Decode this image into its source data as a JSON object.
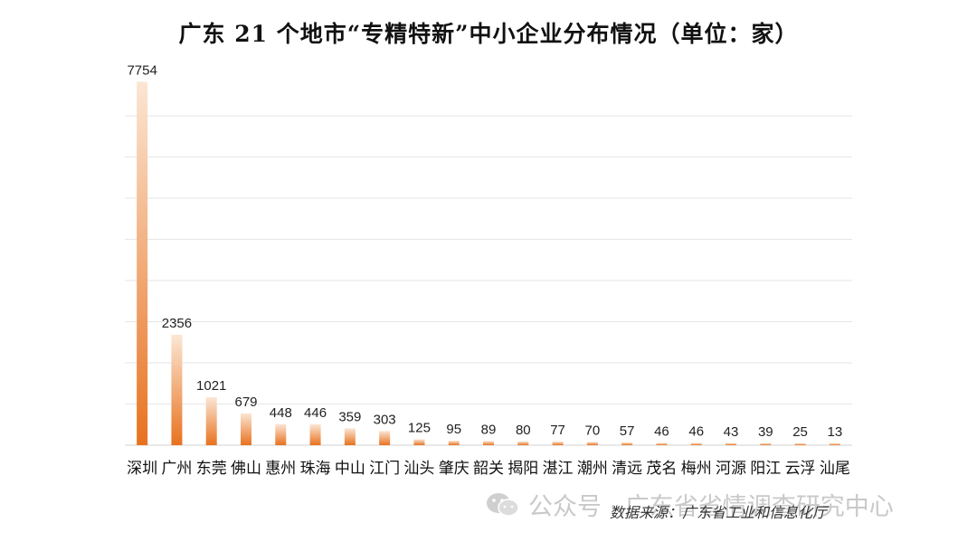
{
  "chart_data": {
    "type": "bar",
    "title": "广东 21 个地市“专精特新”中小企业分布情况（单位：家）",
    "categories": [
      "深圳",
      "广州",
      "东莞",
      "佛山",
      "惠州",
      "珠海",
      "中山",
      "江门",
      "汕头",
      "肇庆",
      "韶关",
      "揭阳",
      "湛江",
      "潮州",
      "清远",
      "茂名",
      "梅州",
      "河源",
      "阳江",
      "云浮",
      "汕尾"
    ],
    "values": [
      7754,
      2356,
      1021,
      679,
      448,
      446,
      359,
      303,
      125,
      95,
      89,
      80,
      77,
      70,
      57,
      46,
      46,
      43,
      39,
      25,
      13
    ],
    "ylim": [
      0,
      7800
    ],
    "grid": true,
    "colors": {
      "bar_bottom": "#e8721f",
      "bar_top": "#fbe6d4",
      "grid": "#e6e6e6"
    }
  },
  "source_note": "数据来源：广东省工业和信息化厅",
  "watermark": {
    "text": "公众号 · 广东省省情调查研究中心",
    "icon": "wechat-icon"
  }
}
